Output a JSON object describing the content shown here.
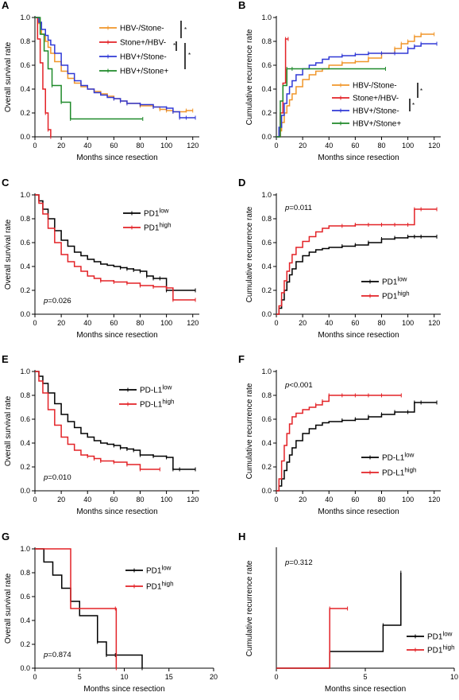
{
  "colors": {
    "orange": "#f0962a",
    "red": "#e32227",
    "blue": "#3039d6",
    "green": "#1f8a2a",
    "black": "#000000"
  },
  "chart_data": [
    {
      "panel": "A",
      "type": "line",
      "xlabel": "Months since resection",
      "ylabel": "Overall survival rate",
      "xlim": [
        0,
        125
      ],
      "xticks": [
        0,
        20,
        40,
        60,
        80,
        100,
        120
      ],
      "ylim": [
        0,
        1.0
      ],
      "yticks": [
        0.0,
        0.2,
        0.4,
        0.6,
        0.8,
        1.0
      ],
      "legend": {
        "placement": "top-right"
      },
      "series": [
        {
          "name": "HBV-/Stone-",
          "color": "orange",
          "x": [
            0,
            3,
            5,
            8,
            10,
            12,
            15,
            20,
            25,
            30,
            35,
            40,
            45,
            50,
            55,
            60,
            65,
            70,
            80,
            90,
            95,
            100,
            105,
            115,
            120
          ],
          "y": [
            1.0,
            0.95,
            0.86,
            0.8,
            0.75,
            0.7,
            0.63,
            0.55,
            0.49,
            0.45,
            0.42,
            0.4,
            0.38,
            0.36,
            0.34,
            0.32,
            0.3,
            0.28,
            0.26,
            0.25,
            0.23,
            0.22,
            0.21,
            0.22,
            0.22
          ]
        },
        {
          "name": "Stone+/HBV-",
          "color": "red",
          "x": [
            0,
            2,
            4,
            6,
            8,
            10,
            12
          ],
          "y": [
            1.0,
            0.82,
            0.62,
            0.4,
            0.2,
            0.06,
            0.0
          ]
        },
        {
          "name": "HBV+/Stone-",
          "color": "blue",
          "x": [
            0,
            3,
            5,
            8,
            10,
            12,
            15,
            20,
            25,
            30,
            35,
            40,
            45,
            50,
            55,
            60,
            65,
            70,
            80,
            90,
            100,
            105,
            110,
            115,
            122
          ],
          "y": [
            1.0,
            0.96,
            0.9,
            0.85,
            0.81,
            0.77,
            0.7,
            0.6,
            0.53,
            0.47,
            0.43,
            0.4,
            0.37,
            0.35,
            0.33,
            0.32,
            0.3,
            0.28,
            0.27,
            0.25,
            0.24,
            0.21,
            0.16,
            0.16,
            0.16
          ]
        },
        {
          "name": "HBV+/Stone+",
          "color": "green",
          "x": [
            0,
            4,
            7,
            10,
            13,
            20,
            27,
            82
          ],
          "y": [
            1.0,
            0.86,
            0.72,
            0.57,
            0.43,
            0.29,
            0.15,
            0.15
          ]
        }
      ],
      "annotations": [
        "*",
        "*",
        "*"
      ]
    },
    {
      "panel": "B",
      "type": "line",
      "xlabel": "Months since resection",
      "ylabel": "Cumulative recurrence rate",
      "xlim": [
        0,
        125
      ],
      "xticks": [
        0,
        20,
        40,
        60,
        80,
        100,
        120
      ],
      "ylim": [
        0,
        1.0
      ],
      "yticks": [
        0.0,
        0.2,
        0.4,
        0.6,
        0.8,
        1.0
      ],
      "legend": {
        "placement": "center-right"
      },
      "series": [
        {
          "name": "HBV-/Stone-",
          "color": "orange",
          "x": [
            0,
            2,
            4,
            6,
            8,
            10,
            12,
            15,
            20,
            25,
            30,
            35,
            40,
            50,
            60,
            70,
            80,
            90,
            95,
            100,
            105,
            110,
            120
          ],
          "y": [
            0,
            0.05,
            0.12,
            0.2,
            0.26,
            0.31,
            0.36,
            0.42,
            0.48,
            0.52,
            0.55,
            0.57,
            0.6,
            0.62,
            0.63,
            0.66,
            0.7,
            0.74,
            0.78,
            0.8,
            0.84,
            0.86,
            0.86
          ]
        },
        {
          "name": "Stone+/HBV-",
          "color": "red",
          "x": [
            0,
            3,
            5,
            7,
            9
          ],
          "y": [
            0,
            0.2,
            0.45,
            0.82,
            0.82
          ]
        },
        {
          "name": "HBV+/Stone-",
          "color": "blue",
          "x": [
            0,
            2,
            4,
            6,
            8,
            10,
            12,
            15,
            20,
            25,
            30,
            35,
            40,
            50,
            60,
            70,
            80,
            90,
            100,
            105,
            110,
            122
          ],
          "y": [
            0,
            0.08,
            0.18,
            0.28,
            0.36,
            0.42,
            0.47,
            0.52,
            0.57,
            0.6,
            0.62,
            0.65,
            0.67,
            0.68,
            0.69,
            0.7,
            0.7,
            0.7,
            0.74,
            0.76,
            0.78,
            0.78
          ]
        },
        {
          "name": "HBV+/Stone+",
          "color": "green",
          "x": [
            0,
            3,
            5,
            8,
            12,
            83
          ],
          "y": [
            0,
            0.3,
            0.43,
            0.57,
            0.57,
            0.57
          ]
        }
      ],
      "annotations": [
        "*",
        "*"
      ]
    },
    {
      "panel": "C",
      "type": "line",
      "xlabel": "Months since resection",
      "ylabel": "Overall survival rate",
      "xlim": [
        0,
        125
      ],
      "xticks": [
        0,
        20,
        40,
        60,
        80,
        100,
        120
      ],
      "ylim": [
        0,
        1.0
      ],
      "yticks": [
        0.0,
        0.2,
        0.4,
        0.6,
        0.8,
        1.0
      ],
      "legend": {
        "placement": "top-right"
      },
      "pvalue": "=0.026",
      "series": [
        {
          "name": "PD1",
          "sup": "low",
          "color": "black",
          "x": [
            0,
            3,
            6,
            10,
            15,
            20,
            25,
            30,
            35,
            40,
            45,
            50,
            55,
            60,
            65,
            70,
            75,
            80,
            85,
            90,
            95,
            100,
            105,
            122
          ],
          "y": [
            1.0,
            0.95,
            0.88,
            0.8,
            0.7,
            0.62,
            0.57,
            0.52,
            0.49,
            0.46,
            0.44,
            0.42,
            0.41,
            0.4,
            0.39,
            0.38,
            0.37,
            0.36,
            0.32,
            0.3,
            0.3,
            0.2,
            0.2,
            0.2
          ]
        },
        {
          "name": "PD1",
          "sup": "high",
          "color": "red",
          "x": [
            0,
            3,
            6,
            10,
            15,
            20,
            25,
            30,
            35,
            40,
            45,
            50,
            60,
            70,
            80,
            90,
            100,
            105,
            122
          ],
          "y": [
            1.0,
            0.93,
            0.84,
            0.72,
            0.6,
            0.5,
            0.44,
            0.4,
            0.36,
            0.32,
            0.3,
            0.28,
            0.27,
            0.26,
            0.24,
            0.23,
            0.22,
            0.12,
            0.12
          ]
        }
      ]
    },
    {
      "panel": "D",
      "type": "line",
      "xlabel": "Months since resection",
      "ylabel": "Cumulative recurrence rate",
      "xlim": [
        0,
        125
      ],
      "xticks": [
        0,
        20,
        40,
        60,
        80,
        100,
        120
      ],
      "ylim": [
        0,
        1.0
      ],
      "yticks": [
        0.0,
        0.2,
        0.4,
        0.6,
        0.8,
        1.0
      ],
      "legend": {
        "placement": "bottom-right"
      },
      "pvalue": "=0.011",
      "series": [
        {
          "name": "PD1",
          "sup": "low",
          "color": "black",
          "x": [
            0,
            2,
            4,
            6,
            8,
            10,
            12,
            15,
            20,
            25,
            30,
            35,
            40,
            50,
            60,
            70,
            80,
            90,
            100,
            105,
            110,
            122
          ],
          "y": [
            0,
            0.05,
            0.12,
            0.2,
            0.27,
            0.33,
            0.38,
            0.44,
            0.49,
            0.52,
            0.54,
            0.55,
            0.56,
            0.57,
            0.58,
            0.6,
            0.63,
            0.64,
            0.65,
            0.65,
            0.65,
            0.65
          ]
        },
        {
          "name": "PD1",
          "sup": "high",
          "color": "red",
          "x": [
            0,
            2,
            4,
            6,
            8,
            10,
            12,
            15,
            20,
            25,
            30,
            35,
            40,
            50,
            60,
            70,
            80,
            90,
            100,
            105,
            110,
            122
          ],
          "y": [
            0,
            0.07,
            0.18,
            0.28,
            0.36,
            0.43,
            0.5,
            0.56,
            0.61,
            0.65,
            0.69,
            0.72,
            0.74,
            0.74,
            0.75,
            0.75,
            0.75,
            0.75,
            0.75,
            0.88,
            0.88,
            0.88
          ]
        }
      ]
    },
    {
      "panel": "E",
      "type": "line",
      "xlabel": "Months since resection",
      "ylabel": "Overall survival rate",
      "xlim": [
        0,
        125
      ],
      "xticks": [
        0,
        20,
        40,
        60,
        80,
        100,
        120
      ],
      "ylim": [
        0,
        1.0
      ],
      "yticks": [
        0.0,
        0.2,
        0.4,
        0.6,
        0.8,
        1.0
      ],
      "legend": {
        "placement": "top-right"
      },
      "pvalue": "=0.010",
      "series": [
        {
          "name": "PD-L1",
          "sup": "low",
          "color": "black",
          "x": [
            0,
            3,
            6,
            10,
            15,
            20,
            25,
            30,
            35,
            40,
            45,
            50,
            55,
            60,
            65,
            70,
            75,
            80,
            90,
            100,
            105,
            110,
            122
          ],
          "y": [
            1.0,
            0.96,
            0.9,
            0.82,
            0.73,
            0.64,
            0.58,
            0.53,
            0.48,
            0.45,
            0.42,
            0.4,
            0.39,
            0.38,
            0.36,
            0.35,
            0.34,
            0.3,
            0.29,
            0.28,
            0.18,
            0.18,
            0.18
          ]
        },
        {
          "name": "PD-L1",
          "sup": "high",
          "color": "red",
          "x": [
            0,
            3,
            6,
            10,
            15,
            20,
            25,
            30,
            35,
            40,
            45,
            50,
            60,
            70,
            80,
            95
          ],
          "y": [
            1.0,
            0.92,
            0.82,
            0.68,
            0.55,
            0.45,
            0.39,
            0.34,
            0.3,
            0.29,
            0.27,
            0.25,
            0.24,
            0.22,
            0.18,
            0.18
          ]
        }
      ]
    },
    {
      "panel": "F",
      "type": "line",
      "xlabel": "Months since resection",
      "ylabel": "Cumulative recurrence rate",
      "xlim": [
        0,
        125
      ],
      "xticks": [
        0,
        20,
        40,
        60,
        80,
        100,
        120
      ],
      "ylim": [
        0,
        1.0
      ],
      "yticks": [
        0.0,
        0.2,
        0.4,
        0.6,
        0.8,
        1.0
      ],
      "legend": {
        "placement": "bottom-right"
      },
      "pvalue": "<0.001",
      "series": [
        {
          "name": "PD-L1",
          "sup": "low",
          "color": "black",
          "x": [
            0,
            2,
            4,
            6,
            8,
            10,
            12,
            15,
            20,
            25,
            30,
            35,
            40,
            50,
            60,
            70,
            80,
            90,
            100,
            105,
            110,
            122
          ],
          "y": [
            0,
            0.04,
            0.1,
            0.17,
            0.24,
            0.3,
            0.36,
            0.42,
            0.48,
            0.52,
            0.55,
            0.57,
            0.58,
            0.59,
            0.6,
            0.62,
            0.64,
            0.66,
            0.66,
            0.74,
            0.74,
            0.74
          ]
        },
        {
          "name": "PD-L1",
          "sup": "high",
          "color": "red",
          "x": [
            0,
            2,
            4,
            6,
            8,
            10,
            12,
            15,
            20,
            25,
            30,
            35,
            40,
            50,
            60,
            70,
            80,
            95
          ],
          "y": [
            0,
            0.1,
            0.25,
            0.38,
            0.48,
            0.56,
            0.62,
            0.65,
            0.68,
            0.7,
            0.72,
            0.75,
            0.8,
            0.8,
            0.8,
            0.8,
            0.8,
            0.8
          ]
        }
      ]
    },
    {
      "panel": "G",
      "type": "line",
      "xlabel": "Months since resection",
      "ylabel": "Overall survival rate",
      "xlim": [
        0,
        20
      ],
      "xticks": [
        0,
        5,
        10,
        15,
        20
      ],
      "ylim": [
        0,
        1.0
      ],
      "yticks": [
        0.0,
        0.2,
        0.4,
        0.6,
        0.8,
        1.0
      ],
      "legend": {
        "placement": "top-right"
      },
      "pvalue": "=0.874",
      "series": [
        {
          "name": "PD1",
          "sup": "low",
          "color": "black",
          "x": [
            0,
            1,
            2,
            3,
            4,
            5,
            7,
            8,
            9,
            12
          ],
          "y": [
            1.0,
            0.89,
            0.78,
            0.67,
            0.56,
            0.44,
            0.22,
            0.11,
            0.11,
            0.0
          ]
        },
        {
          "name": "PD1",
          "sup": "high",
          "color": "red",
          "x": [
            0,
            3.8,
            4,
            9,
            9.1
          ],
          "y": [
            1.0,
            1.0,
            0.5,
            0.5,
            0.0
          ]
        }
      ]
    },
    {
      "panel": "H",
      "type": "line",
      "xlabel": "Months since resection",
      "ylabel": "Cumulative recurrence rate",
      "xlim": [
        0,
        10
      ],
      "xticks": [
        0,
        5,
        10
      ],
      "ylim": [
        0,
        1.0
      ],
      "yticks": [],
      "legend": {
        "placement": "bottom-right"
      },
      "pvalue": "=0.312",
      "series": [
        {
          "name": "PD1",
          "sup": "low",
          "color": "black",
          "x": [
            0,
            3,
            6,
            7
          ],
          "y": [
            0,
            0.14,
            0.36,
            0.8
          ]
        },
        {
          "name": "PD1",
          "sup": "high",
          "color": "red",
          "x": [
            0,
            3,
            4
          ],
          "y": [
            0,
            0.5,
            0.5
          ]
        }
      ]
    }
  ]
}
